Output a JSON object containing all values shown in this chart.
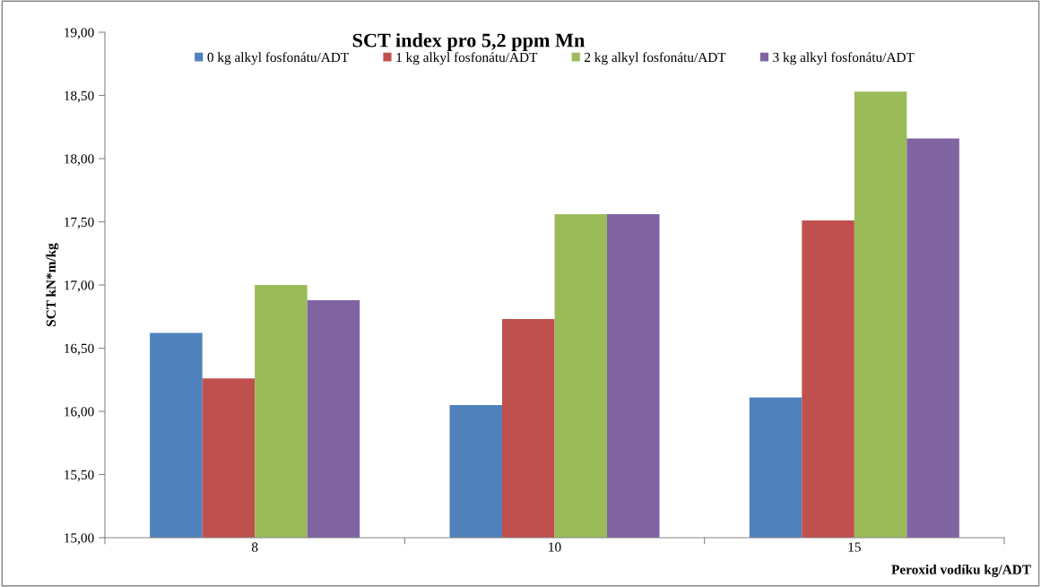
{
  "chart_data": {
    "type": "bar",
    "title": "SCT index pro 5,2 ppm Mn",
    "xlabel": "Peroxid vodíku kg/ADT",
    "ylabel": "SCT kN*m/kg",
    "categories": [
      "8",
      "10",
      "15"
    ],
    "series": [
      {
        "name": "0 kg alkyl fosfonátu/ADT",
        "color": "#4f81bd",
        "values": [
          16.62,
          16.05,
          16.11
        ]
      },
      {
        "name": "1 kg alkyl fosfonátu/ADT",
        "color": "#c0504d",
        "values": [
          16.26,
          16.73,
          17.51
        ]
      },
      {
        "name": "2 kg alkyl fosfonátu/ADT",
        "color": "#9bbb59",
        "values": [
          17.0,
          17.56,
          18.53
        ]
      },
      {
        "name": "3 kg alkyl fosfonátu/ADT",
        "color": "#8064a2",
        "values": [
          16.88,
          17.56,
          18.16
        ]
      }
    ],
    "ylim": [
      15,
      19
    ],
    "yticks": [
      {
        "value": 15,
        "label": "15,00"
      },
      {
        "value": 15.5,
        "label": "15,50"
      },
      {
        "value": 16,
        "label": "16,00"
      },
      {
        "value": 16.5,
        "label": "16,50"
      },
      {
        "value": 17,
        "label": "17,00"
      },
      {
        "value": 17.5,
        "label": "17,50"
      },
      {
        "value": 18,
        "label": "18,00"
      },
      {
        "value": 18.5,
        "label": "18,50"
      },
      {
        "value": 19,
        "label": "19,00"
      }
    ],
    "grid": false,
    "legend": "top"
  }
}
